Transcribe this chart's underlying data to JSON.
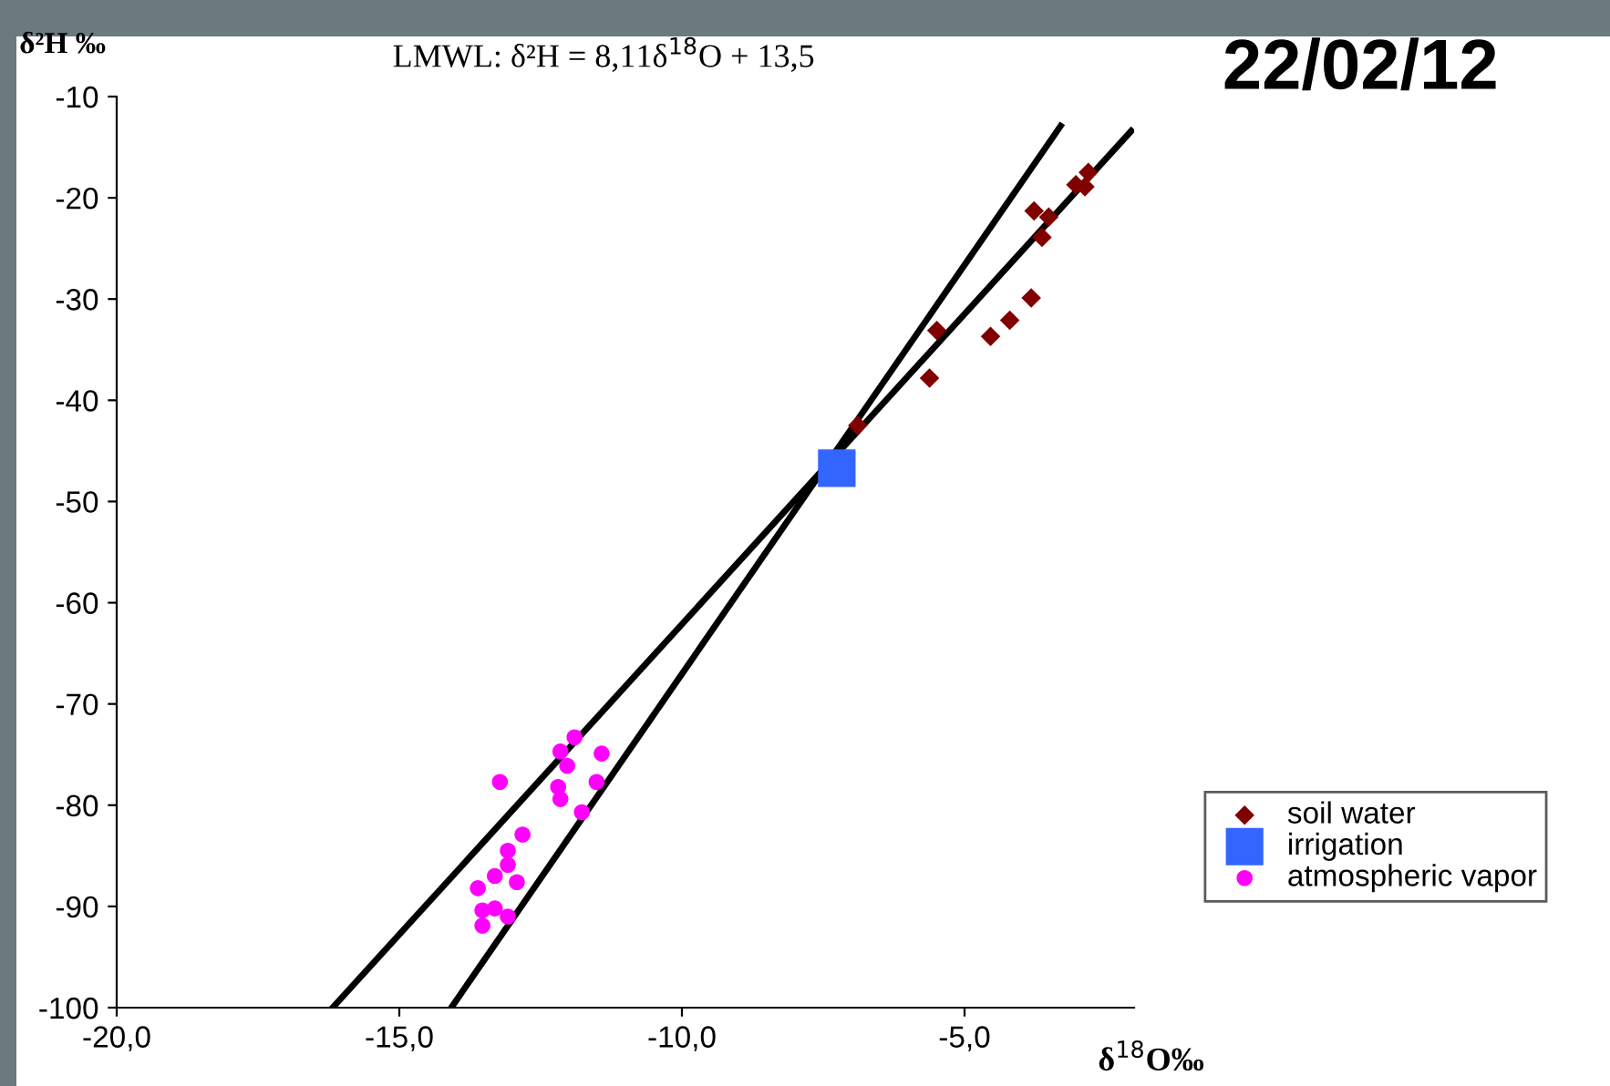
{
  "chart_data": {
    "type": "scatter",
    "title": "22/02/12",
    "xlabel": "δ$^{18}$O‰",
    "ylabel": "δ²H ‰",
    "annotations": [
      "LMWL: δ²H = 8,11δ$^{18}$O + 13,5"
    ],
    "xlim": [
      -20,
      -2
    ],
    "xticks": [
      {
        "value": -20,
        "label": "-20,0"
      },
      {
        "value": -15,
        "label": "-15,0"
      },
      {
        "value": -10,
        "label": "-10,0"
      },
      {
        "value": -5,
        "label": "-5,0"
      }
    ],
    "ylim": [
      -100,
      -10
    ],
    "yticks": [
      -100,
      -90,
      -80,
      -70,
      -60,
      -50,
      -40,
      -30,
      -20,
      -10
    ],
    "grid": false,
    "legend": "bottom right",
    "series": [
      {
        "name": "soil water",
        "color": "#800000",
        "marker": "diamond",
        "x": [
          -2.81,
          -3.03,
          -2.87,
          -3.77,
          -3.51,
          -3.63,
          -3.82,
          -4.2,
          -4.54,
          -5.49,
          -5.62,
          -6.89
        ],
        "values": [
          -17.5,
          -18.7,
          -18.9,
          -21.3,
          -21.9,
          -23.9,
          -29.9,
          -32.1,
          -33.7,
          -33.1,
          -37.8,
          -42.5
        ]
      },
      {
        "name": "irrigation",
        "color": "#3366ff",
        "marker": "square",
        "x": [
          -7.26
        ],
        "values": [
          -46.7
        ]
      },
      {
        "name": "atmospheric vapor",
        "color": "#ff00ff",
        "marker": "circle",
        "x": [
          -11.9,
          -12.15,
          -11.42,
          -12.03,
          -13.22,
          -12.19,
          -11.51,
          -12.15,
          -11.77,
          -12.82,
          -13.08,
          -13.08,
          -13.31,
          -12.92,
          -13.61,
          -13.53,
          -13.31,
          -13.08,
          -13.53
        ],
        "values": [
          -73.3,
          -74.7,
          -74.9,
          -76.1,
          -77.7,
          -78.2,
          -77.7,
          -79.4,
          -80.7,
          -82.9,
          -84.5,
          -85.9,
          -87.0,
          -87.6,
          -88.2,
          -90.4,
          -90.2,
          -91.0,
          -91.9
        ]
      },
      {
        "type": "line",
        "color": "#000000",
        "marker": "none",
        "x": [
          -14.08,
          -3.3
        ],
        "values": [
          -100,
          -12.9
        ]
      },
      {
        "type": "line",
        "color": "#000000",
        "marker": "none",
        "x": [
          -16.18,
          -2.05
        ],
        "values": [
          -100,
          -13.4
        ]
      }
    ]
  }
}
